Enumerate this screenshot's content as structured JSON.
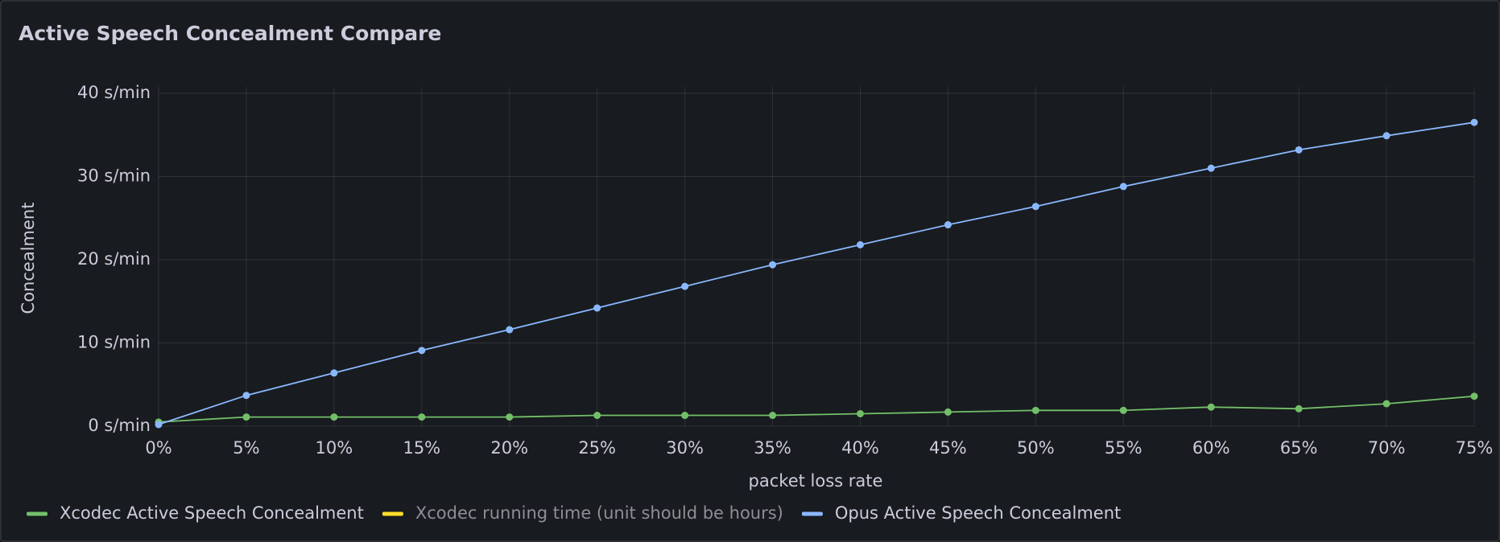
{
  "chart_data": {
    "type": "line",
    "title": "Active Speech Concealment Compare",
    "x_label": "packet loss rate",
    "y_label": "Concealment",
    "x": [
      0,
      5,
      10,
      15,
      20,
      25,
      30,
      35,
      40,
      45,
      50,
      55,
      60,
      65,
      70,
      75
    ],
    "series": [
      {
        "name": "Xcodec Active Speech Concealment",
        "color": "#73bf69",
        "values": [
          0.5,
          1.1,
          1.1,
          1.1,
          1.1,
          1.3,
          1.3,
          1.3,
          1.5,
          1.7,
          1.9,
          1.9,
          2.3,
          2.1,
          2.7,
          3.6
        ]
      },
      {
        "name": "Xcodec running time (unit should be hours)",
        "color": "#fade2a",
        "hidden": true,
        "values": [
          null,
          null,
          null,
          null,
          null,
          null,
          null,
          null,
          null,
          null,
          null,
          null,
          null,
          null,
          null,
          null
        ]
      },
      {
        "name": "Opus Active Speech Concealment",
        "color": "#8ab8ff",
        "values": [
          0.2,
          3.7,
          6.4,
          9.1,
          11.6,
          14.2,
          16.8,
          19.4,
          21.8,
          24.2,
          26.4,
          28.8,
          31.0,
          33.2,
          34.9,
          36.5
        ]
      }
    ],
    "xlim": [
      0,
      75
    ],
    "xticks": [
      {
        "value": 0,
        "label": "0%"
      },
      {
        "value": 5,
        "label": "5%"
      },
      {
        "value": 10,
        "label": "10%"
      },
      {
        "value": 15,
        "label": "15%"
      },
      {
        "value": 20,
        "label": "20%"
      },
      {
        "value": 25,
        "label": "25%"
      },
      {
        "value": 30,
        "label": "30%"
      },
      {
        "value": 35,
        "label": "35%"
      },
      {
        "value": 40,
        "label": "40%"
      },
      {
        "value": 45,
        "label": "45%"
      },
      {
        "value": 50,
        "label": "50%"
      },
      {
        "value": 55,
        "label": "55%"
      },
      {
        "value": 60,
        "label": "60%"
      },
      {
        "value": 65,
        "label": "65%"
      },
      {
        "value": 70,
        "label": "70%"
      },
      {
        "value": 75,
        "label": "75%"
      }
    ],
    "ylim": [
      0,
      40
    ],
    "yticks": [
      {
        "value": 0,
        "label": "0 s/min"
      },
      {
        "value": 10,
        "label": "10 s/min"
      },
      {
        "value": 20,
        "label": "20 s/min"
      },
      {
        "value": 30,
        "label": "30 s/min"
      },
      {
        "value": 40,
        "label": "40 s/min"
      }
    ],
    "grid": true,
    "legend": "bottom"
  }
}
